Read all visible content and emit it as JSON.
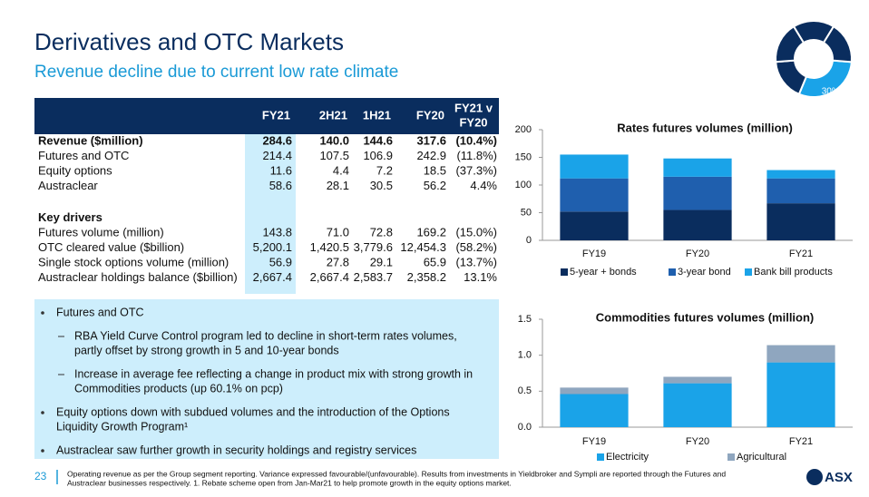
{
  "header": {
    "title": "Derivatives and OTC Markets",
    "subtitle": "Revenue decline due to current low rate climate"
  },
  "table": {
    "columns": [
      [
        "FY21"
      ],
      [
        "2H21"
      ],
      [
        "1H21"
      ],
      [
        "FY20"
      ],
      [
        "FY21 v",
        "FY20"
      ]
    ],
    "rows": [
      {
        "label": "Revenue ($million)",
        "bold": true,
        "cells": [
          "284.6",
          "140.0",
          "144.6",
          "317.6",
          "(10.4%)"
        ]
      },
      {
        "label": "Futures and OTC",
        "cells": [
          "214.4",
          "107.5",
          "106.9",
          "242.9",
          "(11.8%)"
        ]
      },
      {
        "label": "Equity options",
        "cells": [
          "11.6",
          "4.4",
          "7.2",
          "18.5",
          "(37.3%)"
        ]
      },
      {
        "label": "Austraclear",
        "cells": [
          "58.6",
          "28.1",
          "30.5",
          "56.2",
          "4.4%"
        ]
      },
      {
        "label": "Key drivers",
        "bold": true,
        "gap": true,
        "cells": []
      },
      {
        "label": "Futures volume (million)",
        "cells": [
          "143.8",
          "71.0",
          "72.8",
          "169.2",
          "(15.0%)"
        ]
      },
      {
        "label": "OTC cleared value ($billion)",
        "cells": [
          "5,200.1",
          "1,420.5",
          "3,779.6",
          "12,454.3",
          "(58.2%)"
        ]
      },
      {
        "label": "Single stock options volume (million)",
        "cells": [
          "56.9",
          "27.8",
          "29.1",
          "65.9",
          "(13.7%)"
        ]
      },
      {
        "label": "Austraclear holdings balance ($billion)",
        "cells": [
          "2,667.4",
          "2,667.4",
          "2,583.7",
          "2,358.2",
          "13.1%"
        ]
      }
    ]
  },
  "bullets": [
    {
      "level": 1,
      "lines": [
        "Futures and OTC"
      ]
    },
    {
      "level": 2,
      "lines": [
        "RBA Yield Curve Control program led to decline in short-term rates volumes,",
        "partly offset by strong growth in 5 and 10-year bonds"
      ]
    },
    {
      "level": 2,
      "lines": [
        "Increase in average fee reflecting a change in product mix with strong growth in",
        "Commodities products (up 60.1% on pcp)"
      ]
    },
    {
      "level": 1,
      "lines": [
        "Equity options down with subdued volumes and the introduction of the Options",
        "Liquidity Growth Program¹"
      ]
    },
    {
      "level": 1,
      "lines": [
        "Austraclear saw further growth in security holdings and registry services"
      ]
    }
  ],
  "footer": {
    "page": "23",
    "lines": [
      "Operating revenue as per the Group segment reporting. Variance expressed favourable/(unfavourable). Results from investments in Yieldbroker and Sympli are reported through the Futures and",
      "Austraclear businesses respectively. 1. Rebate scheme open from Jan-Mar21 to help promote growth in the equity options market."
    ],
    "logo": "ASX"
  },
  "chart_data": [
    {
      "type": "donut",
      "values": [
        30
      ],
      "value_labels": [
        "30%"
      ],
      "color": "#1aa3e8",
      "rest_color": "#0a2d5e"
    },
    {
      "type": "stacked_bar",
      "title": "Rates futures volumes (million)",
      "categories": [
        "FY19",
        "FY20",
        "FY21"
      ],
      "series": [
        {
          "name": "5-year + bonds",
          "color": "#0a2d5e",
          "values": [
            52,
            55,
            67
          ]
        },
        {
          "name": "3-year bond",
          "color": "#1f5fae",
          "values": [
            60,
            60,
            45
          ]
        },
        {
          "name": "Bank bill products",
          "color": "#1aa3e8",
          "values": [
            43,
            33,
            15
          ]
        }
      ],
      "ylim": [
        0,
        200
      ],
      "yticks": [
        0,
        50,
        100,
        150,
        200
      ],
      "grid": false,
      "legend": "bottom"
    },
    {
      "type": "stacked_bar",
      "title": "Commodities futures volumes (million)",
      "categories": [
        "FY19",
        "FY20",
        "FY21"
      ],
      "series": [
        {
          "name": "Electricity",
          "color": "#1aa3e8",
          "values": [
            0.46,
            0.61,
            0.9
          ]
        },
        {
          "name": "Agricultural",
          "color": "#8fa6bf",
          "values": [
            0.09,
            0.09,
            0.24
          ]
        }
      ],
      "ylim": [
        0,
        1.5
      ],
      "yticks": [
        {
          "value": 0,
          "label": "0.0"
        },
        0.5,
        {
          "value": 1,
          "label": "1.0"
        },
        1.5
      ],
      "grid": false,
      "legend": "bottom"
    }
  ]
}
